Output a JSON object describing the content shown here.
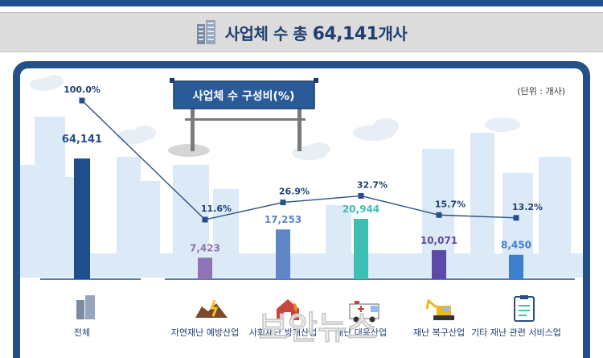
{
  "header": {
    "title_prefix": "사업체 수 총 ",
    "title_number": "64,141",
    "title_suffix": "개사"
  },
  "unit_label": "(단위 : 개사)",
  "sign_label": "사업체 수 구성비(%)",
  "watermark": "보안뉴스",
  "colors": {
    "navy": "#24508a",
    "line": "#2a4f84",
    "total_bar": "#1f4e8c"
  },
  "chart_data": {
    "type": "bar",
    "categories": [
      "전체",
      "자연재난 예방산업",
      "사회재난 방재산업",
      "재난 대응산업",
      "재난 복구산업",
      "기타 재난 관련 서비스업"
    ],
    "values": [
      64141,
      7423,
      17253,
      20944,
      10071,
      8450
    ],
    "value_labels": [
      "64,141",
      "7,423",
      "17,253",
      "20,944",
      "10,071",
      "8,450"
    ],
    "share_percent": [
      100.0,
      11.6,
      26.9,
      32.7,
      15.7,
      13.2
    ],
    "share_labels": [
      "100.0%",
      "11.6%",
      "26.9%",
      "32.7%",
      "15.7%",
      "13.2%"
    ],
    "bar_colors": [
      "#1f4e8c",
      "#8e73b5",
      "#5f87c8",
      "#3dbfb3",
      "#5d4aa8",
      "#3f7fd0"
    ],
    "legend": "none",
    "grid": false
  }
}
